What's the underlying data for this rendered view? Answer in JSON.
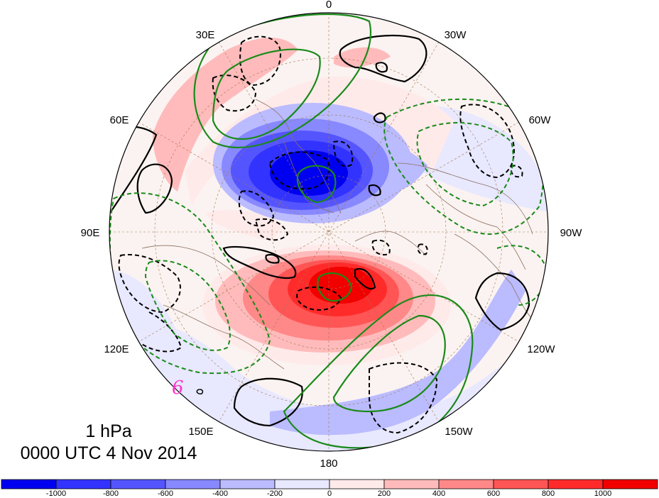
{
  "map": {
    "projection": "polar stereographic (north pole)",
    "longitude_labels": [
      {
        "key": "0",
        "text": "0"
      },
      {
        "key": "30w",
        "text": "30W"
      },
      {
        "key": "60w",
        "text": "60W"
      },
      {
        "key": "90w",
        "text": "90W"
      },
      {
        "key": "120w",
        "text": "120W"
      },
      {
        "key": "150w",
        "text": "150W"
      },
      {
        "key": "180",
        "text": "180"
      },
      {
        "key": "150e",
        "text": "150E"
      },
      {
        "key": "120e",
        "text": "120E"
      },
      {
        "key": "90e",
        "text": "90E"
      },
      {
        "key": "60e",
        "text": "60E"
      },
      {
        "key": "30e",
        "text": "30E"
      }
    ],
    "annotation_glyph": "6",
    "contour_colors": {
      "solid_black": "#000000",
      "dashed_black": "#000000",
      "green": "#1a8a1a"
    }
  },
  "title": {
    "level": "1 hPa",
    "time": "0000 UTC 4 Nov 2014"
  },
  "colorbar": {
    "colors": [
      "#0000f0",
      "#3333ff",
      "#5555ff",
      "#8888ff",
      "#bbbbff",
      "#e8e8ff",
      "#ffeaea",
      "#ffbbbb",
      "#ff8888",
      "#ff5555",
      "#ff2b2b",
      "#f20000"
    ],
    "tick_labels": [
      "-1000",
      "-800",
      "-600",
      "-400",
      "-200",
      "0",
      "200",
      "400",
      "600",
      "800",
      "1000"
    ]
  }
}
